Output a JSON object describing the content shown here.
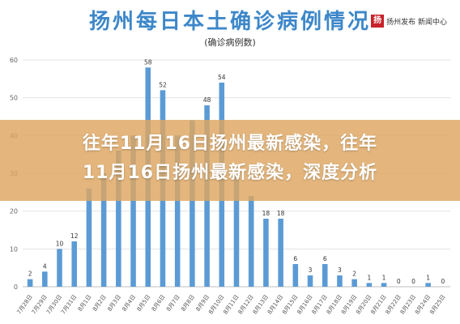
{
  "header": {
    "title": "扬州每日本土确诊病例情况",
    "subtitle": "(确诊病例数)",
    "logo_text": "扬州发布 新闻中心",
    "seal_char": "扬"
  },
  "headline": {
    "line1": "往年11月16日扬州最新感染，往年",
    "line2": "11月16日扬州最新感染，深度分析"
  },
  "colors": {
    "bar": "#5b9bd5",
    "title": "#3d87c9",
    "banner": "#dea660"
  },
  "chart_data": {
    "type": "bar",
    "title": "扬州每日本土确诊病例情况",
    "subtitle": "(确诊病例数)",
    "categories": [
      "7月28日",
      "7月29日",
      "7月30日",
      "7月31日",
      "8月1日",
      "8月2日",
      "8月3日",
      "8月4日",
      "8月5日",
      "8月6日",
      "8月7日",
      "8月8日",
      "8月9日",
      "8月10日",
      "8月11日",
      "8月12日",
      "8月13日",
      "8月14日",
      "8月15日",
      "8月16日",
      "8月17日",
      "8月18日",
      "8月19日",
      "8月20日",
      "8月21日",
      "8月22日",
      "8月23日",
      "8月24日",
      "8月25日"
    ],
    "values": [
      2,
      4,
      10,
      12,
      26,
      30,
      36,
      40,
      58,
      52,
      40,
      44,
      48,
      54,
      30,
      24,
      18,
      18,
      6,
      3,
      6,
      3,
      2,
      1,
      1,
      0,
      0,
      1,
      0
    ],
    "value_labels": [
      "2",
      "4",
      "10",
      "12",
      "",
      "",
      "",
      "",
      "58",
      "52",
      "",
      "",
      "48",
      "54",
      "",
      "",
      "18",
      "18",
      "6",
      "3",
      "6",
      "3",
      "2",
      "1",
      "1",
      "0",
      "0",
      "1",
      "0"
    ],
    "ylim": [
      0,
      60
    ],
    "yticks": [
      0,
      10,
      20,
      30,
      40,
      50,
      60
    ],
    "grid": true,
    "legend": "none",
    "xlabel": "",
    "ylabel": ""
  }
}
